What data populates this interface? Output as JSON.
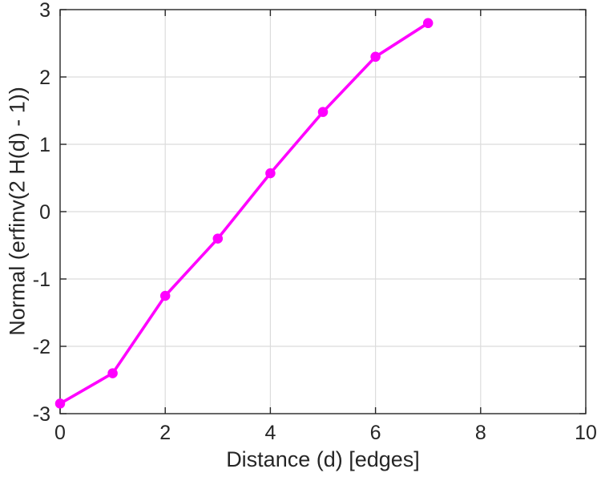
{
  "chart_data": {
    "type": "line",
    "title": "",
    "xlabel": "Distance (d) [edges]",
    "ylabel": "Normal (erfinv(2 H(d) - 1))",
    "x": [
      0,
      1,
      2,
      3,
      4,
      5,
      6,
      7
    ],
    "y": [
      -2.85,
      -2.4,
      -1.25,
      -0.4,
      0.57,
      1.48,
      2.3,
      2.8
    ],
    "xlim": [
      0,
      10
    ],
    "ylim": [
      -3,
      3
    ],
    "xticks": [
      0,
      2,
      4,
      6,
      8,
      10
    ],
    "yticks": [
      -3,
      -2,
      -1,
      0,
      1,
      2,
      3
    ],
    "grid": true,
    "legend": "none",
    "line_color": "#ff00ff",
    "marker": "circle",
    "axis_color": "#262626",
    "grid_color": "#dcdcdc",
    "background": "#ffffff"
  }
}
